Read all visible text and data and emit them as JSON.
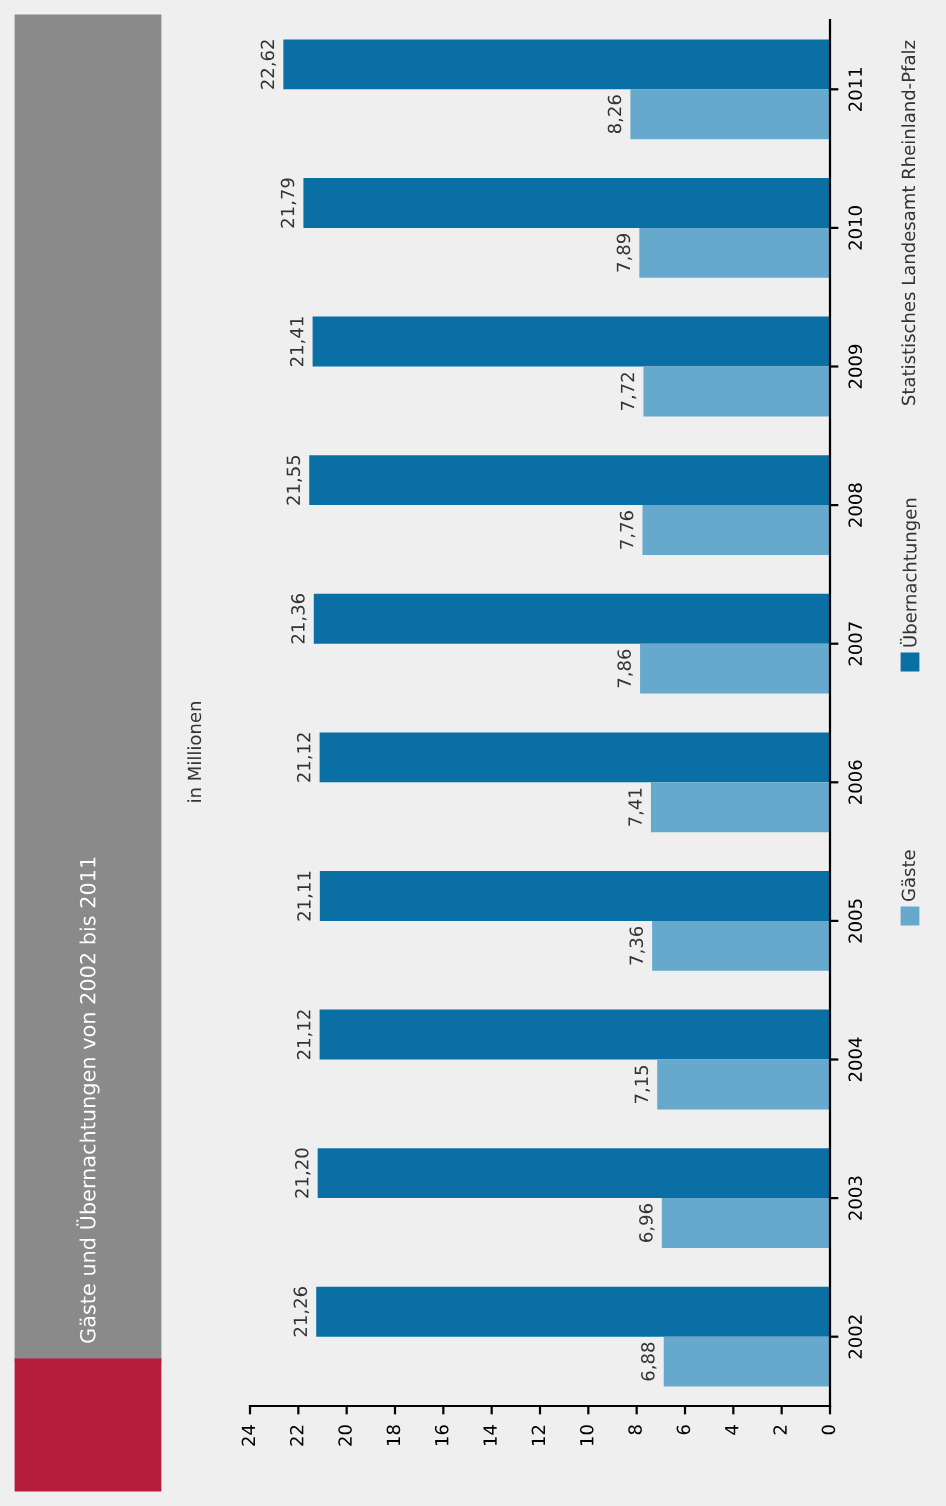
{
  "chart_data": {
    "type": "bar",
    "orientation": "horizontal",
    "title": "Gäste und Übernachtungen von 2002 bis 2011",
    "subtitle": "in Millionen",
    "categories": [
      "2011",
      "2010",
      "2009",
      "2008",
      "2007",
      "2006",
      "2005",
      "2004",
      "2003",
      "2002"
    ],
    "series": [
      {
        "name": "Übernachtungen",
        "color": "#0a6fa5",
        "values": [
          22.62,
          21.79,
          21.41,
          21.55,
          21.36,
          21.12,
          21.11,
          21.12,
          21.2,
          21.26
        ],
        "value_labels": [
          "22,62",
          "21,79",
          "21,41",
          "21,55",
          "21,36",
          "21,12",
          "21,11",
          "21,12",
          "21,20",
          "21,26"
        ]
      },
      {
        "name": "Gäste",
        "color": "#67a9cc",
        "values": [
          8.26,
          7.89,
          7.72,
          7.76,
          7.86,
          7.41,
          7.36,
          7.15,
          6.96,
          6.88
        ],
        "value_labels": [
          "8,26",
          "7,89",
          "7,72",
          "7,76",
          "7,86",
          "7,41",
          "7,36",
          "7,15",
          "6,96",
          "6,88"
        ]
      }
    ],
    "xlim": [
      24,
      0
    ],
    "xticks": [
      0,
      2,
      4,
      6,
      8,
      10,
      12,
      14,
      16,
      18,
      20,
      22,
      24
    ],
    "legend": "right",
    "annotations": [
      "Statistisches Landesamt Rheinland-Pfalz"
    ]
  }
}
